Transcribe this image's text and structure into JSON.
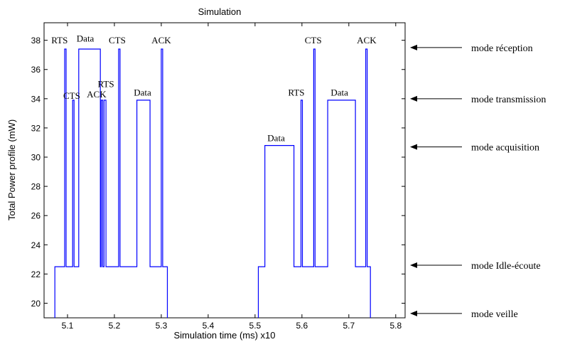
{
  "chart_data": {
    "type": "line",
    "title": "Simulation",
    "xlabel": "Simulation time  (ms) x10",
    "ylabel": "Total Power profile (mW)",
    "xlim": [
      5.05,
      5.82
    ],
    "ylim": [
      19.0,
      39.2
    ],
    "xticks": [
      5.1,
      5.2,
      5.3,
      5.4,
      5.5,
      5.6,
      5.7,
      5.8
    ],
    "xtick_labels": [
      "5.1",
      "5.2",
      "5.3",
      "5.4",
      "5.5",
      "5.6",
      "5.7",
      "5.8"
    ],
    "yticks": [
      20,
      22,
      24,
      26,
      28,
      30,
      32,
      34,
      36,
      38
    ],
    "ytick_labels": [
      "20",
      "22",
      "24",
      "26",
      "28",
      "30",
      "32",
      "34",
      "36",
      "38"
    ],
    "grid": false,
    "series": [
      {
        "color": "#0000ff",
        "x": [
          5.073,
          5.073,
          5.094,
          5.094,
          5.097,
          5.097,
          5.111,
          5.111,
          5.114,
          5.114,
          5.124,
          5.124,
          5.15,
          5.15,
          5.17,
          5.17,
          5.172,
          5.172,
          5.175,
          5.175,
          5.178,
          5.178,
          5.182,
          5.182,
          5.185,
          5.185,
          5.193,
          5.193,
          5.209,
          5.209,
          5.212,
          5.212,
          5.224,
          5.224,
          5.238,
          5.238,
          5.248,
          5.248,
          5.276,
          5.276,
          5.3,
          5.3,
          5.303,
          5.303,
          5.307,
          5.307,
          5.313,
          5.313
        ],
        "y": [
          19.0,
          22.5,
          22.5,
          37.4,
          37.4,
          22.5,
          22.5,
          33.9,
          33.9,
          22.5,
          22.5,
          37.4,
          37.4,
          37.4,
          37.4,
          22.5,
          22.5,
          33.9,
          33.9,
          22.5,
          22.5,
          33.9,
          33.9,
          22.5,
          22.5,
          22.5,
          22.5,
          22.5,
          22.5,
          37.4,
          37.4,
          22.5,
          22.5,
          22.5,
          22.5,
          22.5,
          22.5,
          33.9,
          33.9,
          22.5,
          22.5,
          37.4,
          37.4,
          22.5,
          22.5,
          22.5,
          22.5,
          19.0
        ]
      },
      {
        "color": "#0000ff",
        "x": [
          5.507,
          5.507,
          5.521,
          5.521,
          5.552,
          5.552,
          5.583,
          5.583,
          5.598,
          5.598,
          5.601,
          5.601,
          5.625,
          5.625,
          5.628,
          5.628,
          5.655,
          5.655,
          5.698,
          5.698,
          5.714,
          5.714,
          5.736,
          5.736,
          5.739,
          5.739,
          5.746,
          5.746
        ],
        "y": [
          19.0,
          22.5,
          22.5,
          30.8,
          30.8,
          30.8,
          30.8,
          22.5,
          22.5,
          33.9,
          33.9,
          22.5,
          22.5,
          37.4,
          37.4,
          22.5,
          22.5,
          33.9,
          33.9,
          33.9,
          33.9,
          22.5,
          22.5,
          37.4,
          37.4,
          22.5,
          22.5,
          19.0
        ]
      }
    ],
    "annotations": [
      {
        "text": "RTS",
        "x": 5.083,
        "y": 37.8
      },
      {
        "text": "Data",
        "x": 5.138,
        "y": 37.9
      },
      {
        "text": "CTS",
        "x": 5.206,
        "y": 37.8
      },
      {
        "text": "ACK",
        "x": 5.3,
        "y": 37.8
      },
      {
        "text": "CTS",
        "x": 5.109,
        "y": 34.0
      },
      {
        "text": "ACK",
        "x": 5.162,
        "y": 34.1
      },
      {
        "text": "RTS",
        "x": 5.182,
        "y": 34.8
      },
      {
        "text": "Data",
        "x": 5.26,
        "y": 34.2
      },
      {
        "text": "Data",
        "x": 5.545,
        "y": 31.1
      },
      {
        "text": "RTS",
        "x": 5.588,
        "y": 34.2
      },
      {
        "text": "Data",
        "x": 5.68,
        "y": 34.2
      },
      {
        "text": "CTS",
        "x": 5.624,
        "y": 37.8
      },
      {
        "text": "ACK",
        "x": 5.738,
        "y": 37.8
      }
    ],
    "side_labels": [
      {
        "text": "mode réception",
        "y": 37.5
      },
      {
        "text": "mode transmission",
        "y": 34.0
      },
      {
        "text": "mode acquisition",
        "y": 30.7
      },
      {
        "text": "mode Idle-écoute",
        "y": 22.6
      },
      {
        "text": "mode veille",
        "y": 19.3
      }
    ]
  }
}
